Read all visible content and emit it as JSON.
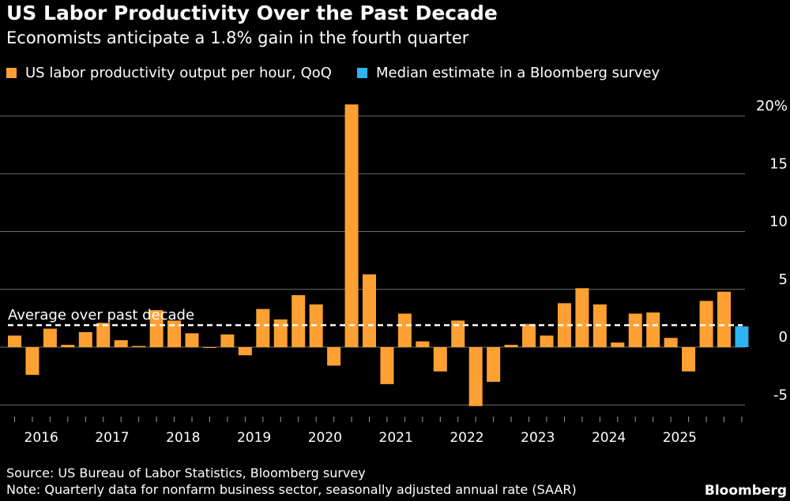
{
  "header": {
    "title": "US Labor Productivity Over the Past Decade",
    "subtitle": "Economists anticipate a 1.8% gain in the fourth quarter"
  },
  "legend": {
    "actual_label": "US labor productivity output per hour, QoQ",
    "estimate_label": "Median estimate in a Bloomberg survey"
  },
  "colors": {
    "actual": "#ffa033",
    "estimate": "#2eb4f0",
    "gridline": "#6e6e6e",
    "background": "#000000"
  },
  "chart_data": {
    "type": "bar",
    "title": "US Labor Productivity Over the Past Decade",
    "ylabel": "",
    "xlabel": "",
    "ylim": [
      -5,
      20
    ],
    "yticks": [
      -5,
      0,
      5,
      10,
      15,
      20
    ],
    "ytick_labels": [
      "-5",
      "0",
      "5",
      "10",
      "15",
      "20%"
    ],
    "year_labels": [
      "2016",
      "2017",
      "2018",
      "2019",
      "2020",
      "2021",
      "2022",
      "2023",
      "2024",
      "2025"
    ],
    "series": [
      {
        "name": "US labor productivity output per hour, QoQ",
        "values": [
          1.0,
          -2.4,
          1.6,
          0.2,
          1.3,
          2.1,
          0.6,
          0.1,
          3.2,
          2.3,
          1.2,
          0.0,
          1.1,
          -0.7,
          3.3,
          2.4,
          4.5,
          3.7,
          -1.6,
          21.0,
          6.3,
          -3.2,
          2.9,
          0.5,
          -2.1,
          2.3,
          -5.1,
          -3.0,
          0.2,
          2.0,
          1.0,
          3.8,
          5.1,
          3.7,
          0.4,
          2.9,
          3.0,
          0.8,
          -2.1,
          4.0,
          4.8
        ]
      },
      {
        "name": "Median estimate in a Bloomberg survey",
        "values": [
          1.8
        ]
      }
    ],
    "average": {
      "label": "Average over past decade",
      "value": 1.9
    }
  },
  "footer": {
    "source": "Source: US Bureau of Labor Statistics, Bloomberg survey",
    "note": "Note: Quarterly data for nonfarm business sector, seasonally adjusted annual rate (SAAR)",
    "brand": "Bloomberg"
  }
}
